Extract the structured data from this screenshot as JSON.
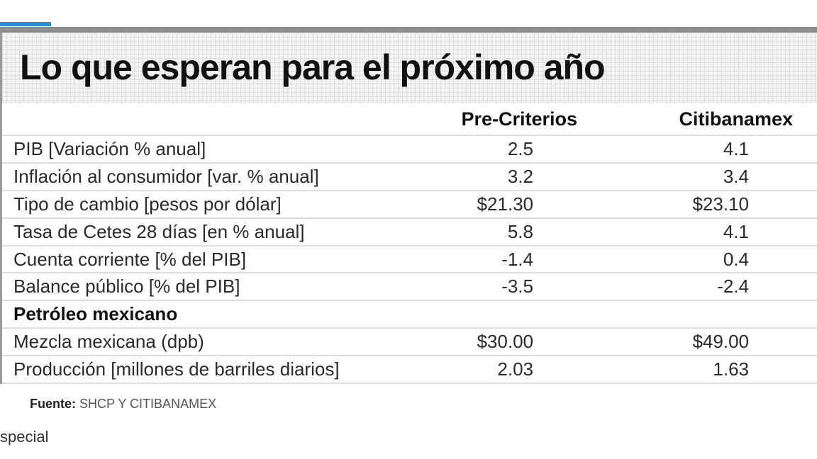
{
  "chart_data": {
    "type": "table",
    "title": "Lo que esperan para el próximo año",
    "columns": [
      "",
      "Pre-Criterios",
      "Citibanamex"
    ],
    "rows": [
      {
        "label": "PIB [Variación % anual]",
        "pre_criterios": "2.5",
        "citibanamex": "4.1",
        "bold": false
      },
      {
        "label": "Inflación al consumidor [var. % anual]",
        "pre_criterios": "3.2",
        "citibanamex": "3.4",
        "bold": false
      },
      {
        "label": "Tipo de cambio [pesos por dólar]",
        "pre_criterios": "$21.30",
        "citibanamex": "$23.10",
        "bold": false
      },
      {
        "label": "Tasa de Cetes 28 días [en % anual]",
        "pre_criterios": "5.8",
        "citibanamex": "4.1",
        "bold": false
      },
      {
        "label": "Cuenta corriente [% del PIB]",
        "pre_criterios": "-1.4",
        "citibanamex": "0.4",
        "bold": false
      },
      {
        "label": "Balance público [% del PIB]",
        "pre_criterios": "-3.5",
        "citibanamex": "-2.4",
        "bold": false
      },
      {
        "label": "Petróleo mexicano",
        "pre_criterios": "",
        "citibanamex": "",
        "bold": true
      },
      {
        "label": "Mezcla mexicana (dpb)",
        "pre_criterios": "$30.00",
        "citibanamex": "$49.00",
        "bold": false
      },
      {
        "label": "Producción [millones de barriles diarios]",
        "pre_criterios": "2.03",
        "citibanamex": "1.63",
        "bold": false
      }
    ],
    "source_label": "Fuente:",
    "source_text": "SHCP Y CITIBANAMEX",
    "credit": "special"
  },
  "colors": {
    "accent": "#2a8fd6",
    "bar": "#8d8d8d",
    "text": "#1a1a1a",
    "rule": "#dcdcdc"
  }
}
